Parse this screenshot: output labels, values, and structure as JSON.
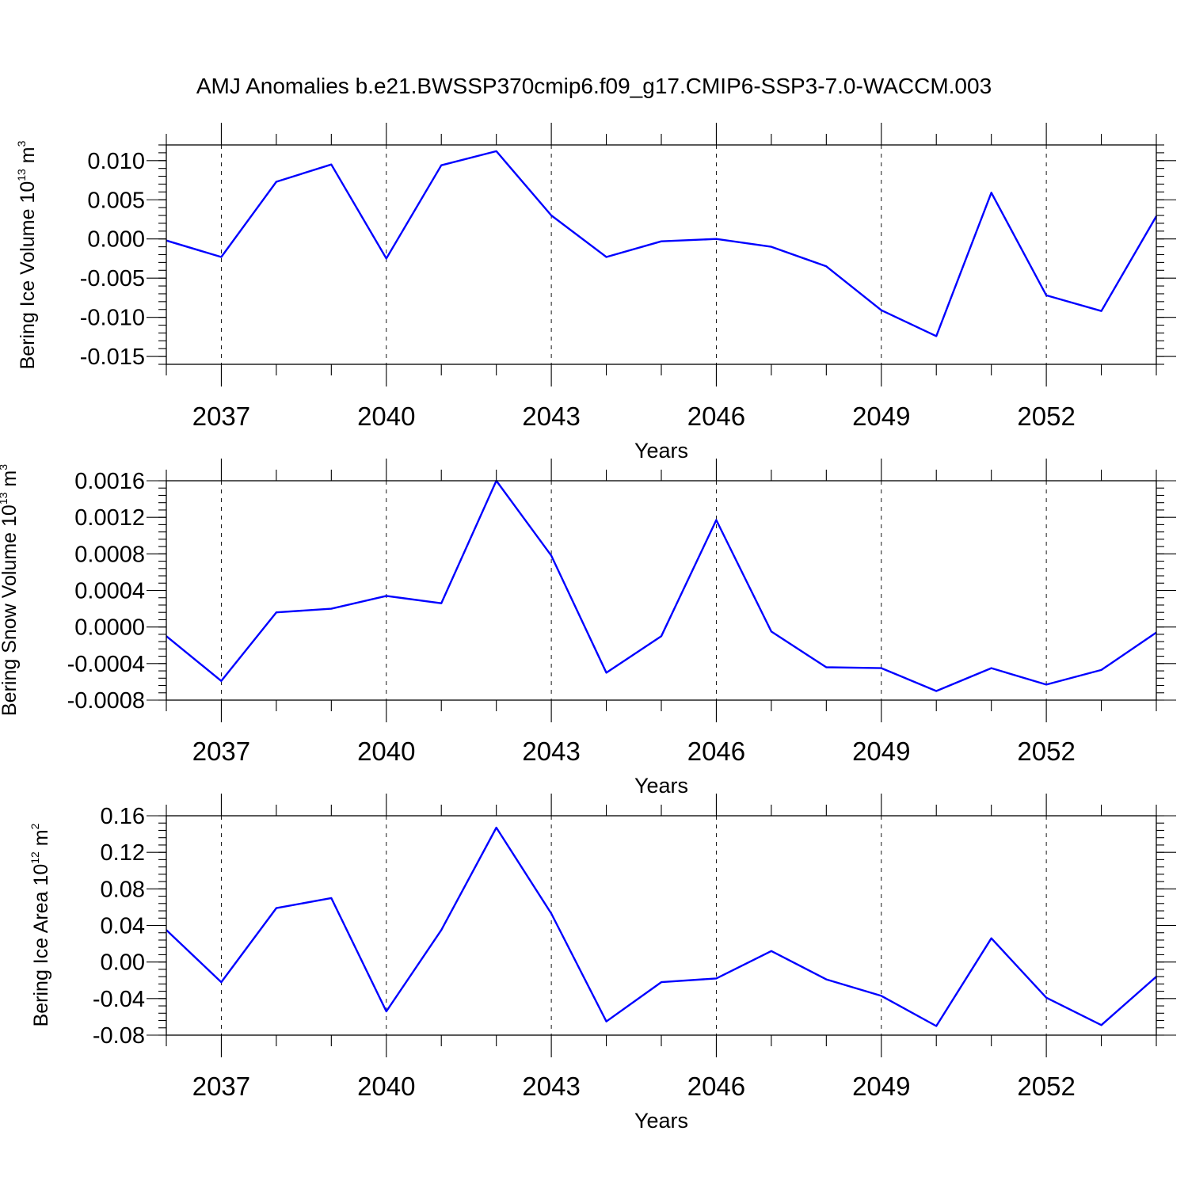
{
  "figure": {
    "title": "AMJ Anomalies b.e21.BWSSP370cmip6.f09_g17.CMIP6-SSP3-7.0-WACCM.003",
    "line_color": "#0000ff"
  },
  "chart_data": [
    {
      "type": "line",
      "xlabel": "Years",
      "ylabel": "Bering Ice Volume 10",
      "ylabel_exp": "13",
      "ylabel_unit": " m",
      "ylabel_unit_exp": "3",
      "xlim": [
        2036,
        2054
      ],
      "ylim": [
        -0.016,
        0.012
      ],
      "x_ticks": [
        "2037",
        "2040",
        "2043",
        "2046",
        "2049",
        "2052"
      ],
      "y_ticks": [
        "0.010",
        "0.005",
        "0.000",
        "-0.005",
        "-0.010",
        "-0.015"
      ],
      "y_tick_values": [
        0.01,
        0.005,
        0.0,
        -0.005,
        -0.01,
        -0.015
      ],
      "x": [
        2036,
        2037,
        2038,
        2039,
        2040,
        2041,
        2042,
        2043,
        2044,
        2045,
        2046,
        2047,
        2048,
        2049,
        2050,
        2051,
        2052,
        2053,
        2054
      ],
      "values": [
        -0.0002,
        -0.0023,
        0.0073,
        0.0095,
        -0.0025,
        0.0094,
        0.0112,
        0.003,
        -0.0023,
        -0.0003,
        0.0,
        -0.001,
        -0.0035,
        -0.0091,
        -0.0124,
        0.0059,
        -0.0072,
        -0.0092,
        0.0029
      ],
      "grid": "vertical dashed at major ticks"
    },
    {
      "type": "line",
      "xlabel": "Years",
      "ylabel": "Bering Snow Volume 10",
      "ylabel_exp": "13",
      "ylabel_unit": " m",
      "ylabel_unit_exp": "3",
      "xlim": [
        2036,
        2054
      ],
      "ylim": [
        -0.0008,
        0.0016
      ],
      "x_ticks": [
        "2037",
        "2040",
        "2043",
        "2046",
        "2049",
        "2052"
      ],
      "y_ticks": [
        "0.0016",
        "0.0012",
        "0.0008",
        "0.0004",
        "0.0000",
        "-0.0004",
        "-0.0008"
      ],
      "y_tick_values": [
        0.0016,
        0.0012,
        0.0008,
        0.0004,
        0.0,
        -0.0004,
        -0.0008
      ],
      "x": [
        2036,
        2037,
        2038,
        2039,
        2040,
        2041,
        2042,
        2043,
        2044,
        2045,
        2046,
        2047,
        2048,
        2049,
        2050,
        2051,
        2052,
        2053,
        2054
      ],
      "values": [
        -0.0001,
        -0.00059,
        0.00016,
        0.0002,
        0.00034,
        0.00026,
        0.0016,
        0.00078,
        -0.0005,
        -0.0001,
        0.00117,
        -5e-05,
        -0.00044,
        -0.00045,
        -0.0007,
        -0.00045,
        -0.00063,
        -0.00047,
        -6e-05
      ],
      "grid": "vertical dashed at major ticks"
    },
    {
      "type": "line",
      "xlabel": "Years",
      "ylabel": "Bering Ice Area 10",
      "ylabel_exp": "12",
      "ylabel_unit": " m",
      "ylabel_unit_exp": "2",
      "xlim": [
        2036,
        2054
      ],
      "ylim": [
        -0.08,
        0.16
      ],
      "x_ticks": [
        "2037",
        "2040",
        "2043",
        "2046",
        "2049",
        "2052"
      ],
      "y_ticks": [
        "0.16",
        "0.12",
        "0.08",
        "0.04",
        "0.00",
        "-0.04",
        "-0.08"
      ],
      "y_tick_values": [
        0.16,
        0.12,
        0.08,
        0.04,
        0.0,
        -0.04,
        -0.08
      ],
      "x": [
        2036,
        2037,
        2038,
        2039,
        2040,
        2041,
        2042,
        2043,
        2044,
        2045,
        2046,
        2047,
        2048,
        2049,
        2050,
        2051,
        2052,
        2053,
        2054
      ],
      "values": [
        0.035,
        -0.022,
        0.059,
        0.07,
        -0.054,
        0.035,
        0.147,
        0.053,
        -0.065,
        -0.022,
        -0.018,
        0.012,
        -0.019,
        -0.037,
        -0.07,
        0.026,
        -0.039,
        -0.069,
        -0.016
      ],
      "grid": "vertical dashed at major ticks"
    }
  ]
}
